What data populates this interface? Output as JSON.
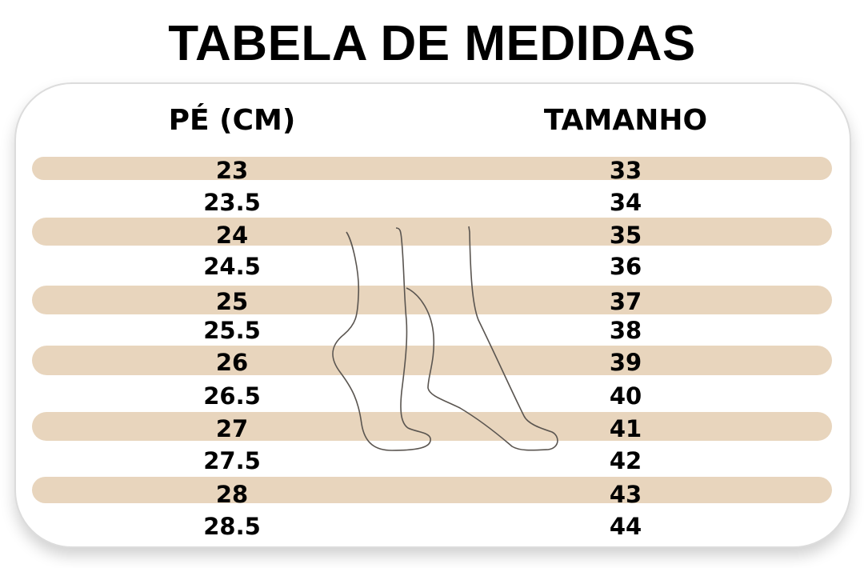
{
  "title": "TABELA DE MEDIDAS",
  "headers": {
    "foot_cm": "PÉ (CM)",
    "size": "TAMANHO"
  },
  "rows": [
    {
      "cm": "23",
      "size": "33"
    },
    {
      "cm": "23.5",
      "size": "34"
    },
    {
      "cm": "24",
      "size": "35"
    },
    {
      "cm": "24.5",
      "size": "36"
    },
    {
      "cm": "25",
      "size": "37"
    },
    {
      "cm": "25.5",
      "size": "38"
    },
    {
      "cm": "26",
      "size": "39"
    },
    {
      "cm": "26.5",
      "size": "40"
    },
    {
      "cm": "27",
      "size": "41"
    },
    {
      "cm": "27.5",
      "size": "42"
    },
    {
      "cm": "28",
      "size": "43"
    },
    {
      "cm": "28.5",
      "size": "44"
    }
  ],
  "colors": {
    "band": "#e8d5bd",
    "outline": "#5a5550"
  },
  "illustration": "foot-outline-icon"
}
